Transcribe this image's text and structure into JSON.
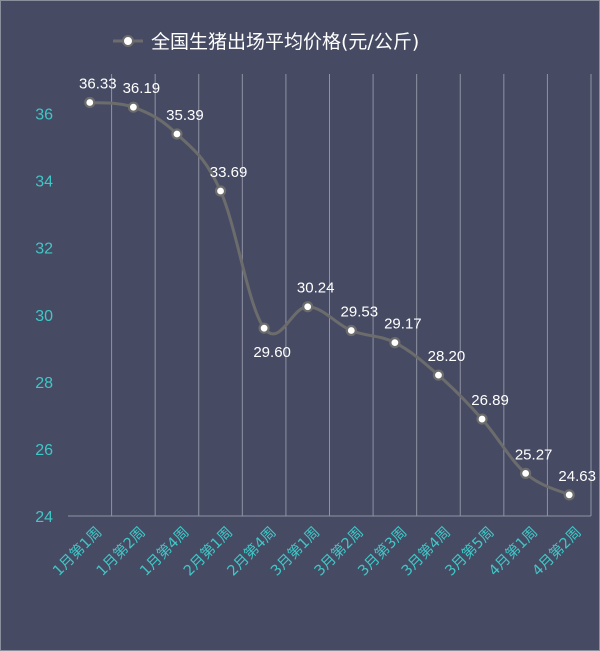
{
  "chart_data": {
    "type": "line",
    "title": "",
    "xlabel": "",
    "ylabel": "",
    "categories": [
      "1月第1周",
      "1月第2周",
      "1月第4周",
      "2月第1周",
      "2月第4周",
      "3月第1周",
      "3月第2周",
      "3月第3周",
      "3月第4周",
      "3月第5周",
      "4月第1周",
      "4月第2周"
    ],
    "series": [
      {
        "name": "全国生猪出场平均价格(元/公斤)",
        "values": [
          36.33,
          36.19,
          35.39,
          33.69,
          29.6,
          30.24,
          29.53,
          29.17,
          28.2,
          26.89,
          25.27,
          24.63
        ],
        "labels": [
          "36.33",
          "36.19",
          "35.39",
          "33.69",
          "29.60",
          "30.24",
          "29.53",
          "29.17",
          "28.20",
          "26.89",
          "25.27",
          "24.63"
        ]
      }
    ],
    "ylim": [
      24,
      37
    ],
    "yticks": [
      24,
      26,
      28,
      30,
      32,
      34,
      36
    ],
    "grid": "vertical",
    "legend": "top",
    "colors": {
      "background": "#464b63",
      "line": "#6c6c6c",
      "marker_fill": "#ffffff",
      "marker_stroke": "#6c6c6c",
      "axis_text": "#3fc7c7",
      "label_text": "#ffffff",
      "gridline": "#8f93a3"
    }
  }
}
